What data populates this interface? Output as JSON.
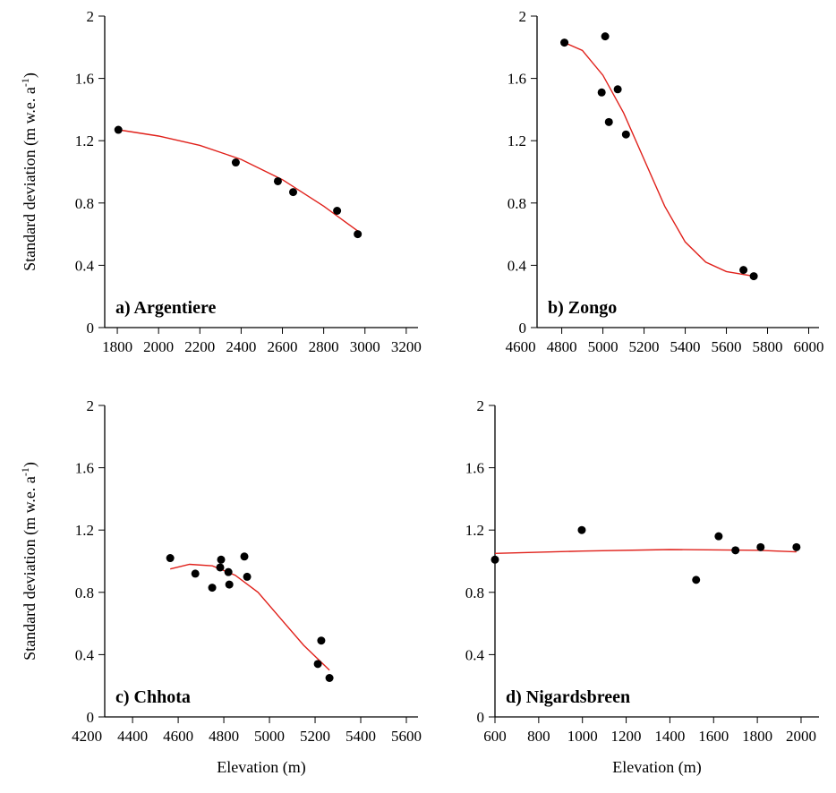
{
  "chart_data": [
    {
      "type": "scatter",
      "title": "a) Argentiere",
      "ylabel": "Standard deviation (m w.e. a",
      "ylabel_sup": "-1",
      "ylabel_end": ")",
      "x": [
        1805,
        2374,
        2578,
        2652,
        2865,
        2965
      ],
      "values": [
        1.27,
        1.06,
        0.94,
        0.87,
        0.75,
        0.6
      ],
      "color": "#000000",
      "fit_x": [
        1805,
        2000,
        2200,
        2400,
        2600,
        2800,
        2965
      ],
      "fit_values": [
        1.27,
        1.23,
        1.17,
        1.08,
        0.95,
        0.78,
        0.62
      ],
      "fit_color": "#e0201a",
      "xlim": [
        1739,
        3257
      ],
      "xticks": [
        1800,
        2000,
        2200,
        2400,
        2600,
        2800,
        3000,
        3200
      ],
      "ylim": [
        0,
        2
      ],
      "yticks": [
        0,
        0.4,
        0.8,
        1.2,
        1.6,
        2
      ]
    },
    {
      "type": "scatter",
      "title": "b) Zongo",
      "x": [
        4813,
        5011,
        4994,
        5029,
        5072,
        5112,
        5683,
        5733
      ],
      "values": [
        1.83,
        1.87,
        1.51,
        1.32,
        1.53,
        1.24,
        0.37,
        0.33
      ],
      "color": "#000000",
      "fit_x": [
        4813,
        4900,
        5000,
        5100,
        5200,
        5300,
        5400,
        5500,
        5600,
        5733
      ],
      "fit_values": [
        1.83,
        1.78,
        1.62,
        1.38,
        1.08,
        0.78,
        0.55,
        0.42,
        0.36,
        0.33
      ],
      "fit_color": "#e0201a",
      "xlim": [
        4680,
        6050
      ],
      "xticks": [
        4600,
        4800,
        5000,
        5200,
        5400,
        5600,
        5800,
        6000
      ],
      "ylim": [
        0,
        2
      ],
      "yticks": [
        0,
        0.4,
        0.8,
        1.2,
        1.6,
        2
      ]
    },
    {
      "type": "scatter",
      "title": "c) Chhota",
      "ylabel": "Standard deviation (m w.e. a",
      "ylabel_sup": "-1",
      "ylabel_end": ")",
      "xlabel": "Elevation (m)",
      "x": [
        4565,
        4675,
        4749,
        4788,
        4784,
        4820,
        4824,
        4890,
        4902,
        5212,
        5227,
        5263
      ],
      "values": [
        1.02,
        0.92,
        0.83,
        1.01,
        0.96,
        0.93,
        0.85,
        1.03,
        0.9,
        0.34,
        0.49,
        0.25
      ],
      "color": "#000000",
      "fit_x": [
        4565,
        4650,
        4750,
        4850,
        4950,
        5050,
        5150,
        5263
      ],
      "fit_values": [
        0.95,
        0.98,
        0.97,
        0.91,
        0.8,
        0.63,
        0.46,
        0.3
      ],
      "fit_color": "#e0201a",
      "xlim": [
        4278,
        5651
      ],
      "xticks": [
        4200,
        4400,
        4600,
        4800,
        5000,
        5200,
        5400,
        5600
      ],
      "ylim": [
        0,
        2
      ],
      "yticks": [
        0,
        0.4,
        0.8,
        1.2,
        1.6,
        2
      ]
    },
    {
      "type": "scatter",
      "title": "d) Nigardsbreen",
      "xlabel": "Elevation (m)",
      "x": [
        600,
        997,
        1520,
        1623,
        1700,
        1815,
        1979
      ],
      "values": [
        1.01,
        1.2,
        0.88,
        1.16,
        1.07,
        1.09,
        1.09
      ],
      "color": "#000000",
      "fit_x": [
        600,
        1000,
        1400,
        1800,
        1979
      ],
      "fit_values": [
        1.05,
        1.065,
        1.075,
        1.07,
        1.06
      ],
      "fit_color": "#e0201a",
      "xlim": [
        600,
        2082
      ],
      "xticks": [
        600,
        800,
        1000,
        1200,
        1400,
        1600,
        1800,
        2000
      ],
      "ylim": [
        0,
        2
      ],
      "yticks": [
        0,
        0.4,
        0.8,
        1.2,
        1.6,
        2
      ]
    }
  ]
}
